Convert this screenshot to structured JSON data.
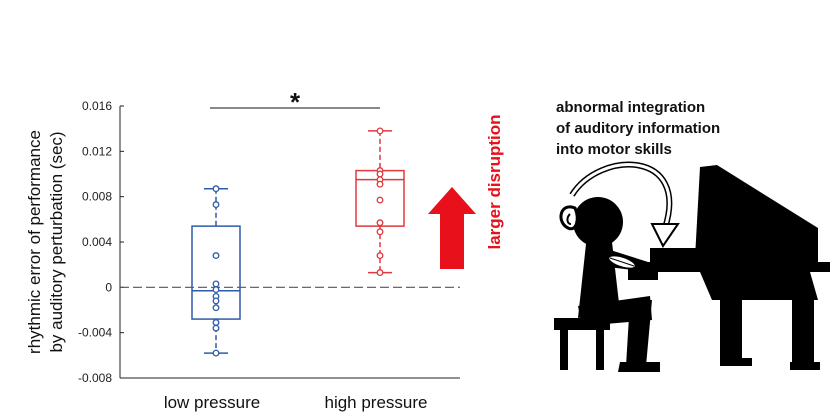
{
  "chart_data": {
    "type": "box",
    "ylabel_lines": [
      "rhythmic error of performance",
      "by auditory perturbation (sec)"
    ],
    "ylim": [
      -0.008,
      0.016
    ],
    "yticks": [
      -0.008,
      -0.004,
      0,
      0.004,
      0.008,
      0.012,
      0.016
    ],
    "ytick_labels": [
      "-0.008",
      "-0.004",
      "0",
      "0.004",
      "0.008",
      "0.012",
      "0.016"
    ],
    "zero_line": true,
    "categories": [
      "low pressure",
      "high pressure"
    ],
    "series": [
      {
        "category": "low pressure",
        "color": "#2e5ba8",
        "whisker_low": -0.0058,
        "q1": -0.0028,
        "median": -0.0003,
        "q3": 0.0054,
        "whisker_high": 0.0087,
        "points": [
          0.0087,
          0.0073,
          0.0028,
          0.0003,
          -0.0002,
          -0.0008,
          -0.0012,
          -0.0018,
          -0.0031,
          -0.0036,
          -0.0058
        ]
      },
      {
        "category": "high pressure",
        "color": "#e0383b",
        "whisker_low": 0.0013,
        "q1": 0.0054,
        "median": 0.0095,
        "q3": 0.0103,
        "whisker_high": 0.0138,
        "points": [
          0.0138,
          0.0103,
          0.01,
          0.0095,
          0.0091,
          0.0077,
          0.0057,
          0.0049,
          0.0028,
          0.0013
        ]
      }
    ],
    "significance": {
      "label": "*",
      "between": [
        "low pressure",
        "high pressure"
      ]
    }
  },
  "arrow": {
    "label": "larger disruption",
    "color": "#e8101a"
  },
  "annotation": {
    "lines": [
      "abnormal integration",
      "of auditory information",
      "into motor skills"
    ]
  },
  "illustration": {
    "icon": "pianist-silhouette-icon"
  }
}
